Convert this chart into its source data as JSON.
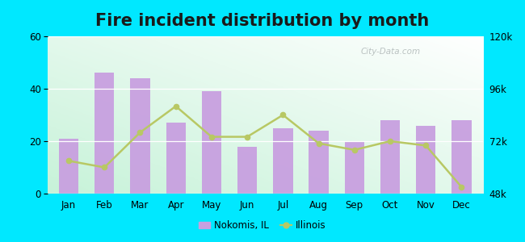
{
  "title": "Fire incident distribution by month",
  "months": [
    "Jan",
    "Feb",
    "Mar",
    "Apr",
    "May",
    "Jun",
    "Jul",
    "Aug",
    "Sep",
    "Oct",
    "Nov",
    "Dec"
  ],
  "nokomis_values": [
    21,
    46,
    44,
    27,
    39,
    18,
    25,
    24,
    20,
    28,
    26,
    28
  ],
  "illinois_values": [
    63000,
    60000,
    76000,
    88000,
    74000,
    74000,
    84000,
    71000,
    68000,
    72000,
    70000,
    51000
  ],
  "bar_color": "#c8a0e0",
  "line_color": "#b8c864",
  "line_marker": "o",
  "background_outer": "#00e8ff",
  "ylim_left": [
    0,
    60
  ],
  "ylim_right": [
    48000,
    120000
  ],
  "yticks_left": [
    0,
    20,
    40,
    60
  ],
  "yticks_right": [
    48000,
    72000,
    96000,
    120000
  ],
  "watermark": "City-Data.com",
  "legend_nokomis": "Nokomis, IL",
  "legend_illinois": "Illinois",
  "title_fontsize": 15,
  "bg_color_top": "#f0faf4",
  "bg_color_bottom": "#c8eedd"
}
